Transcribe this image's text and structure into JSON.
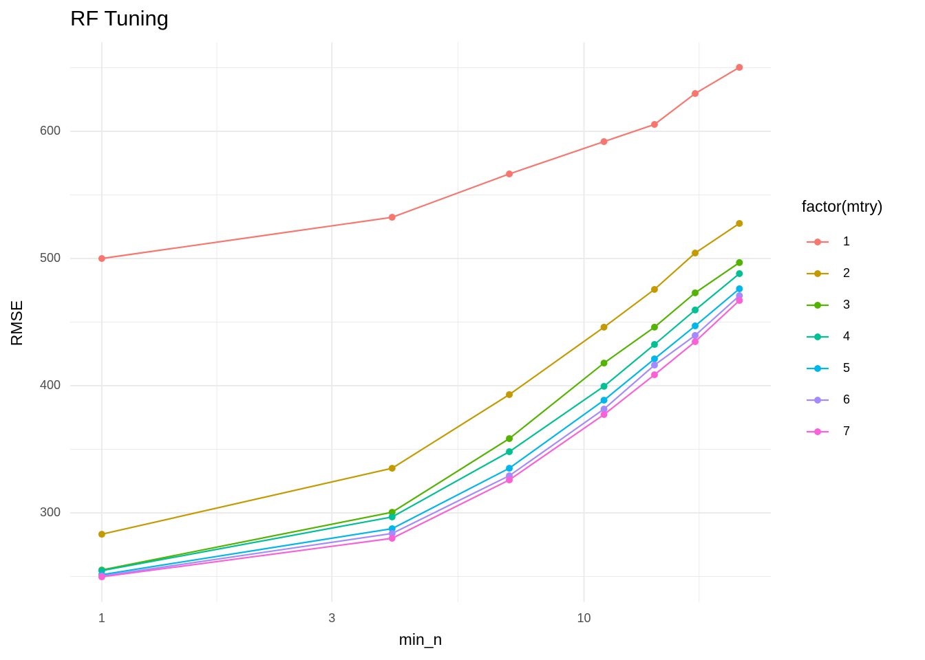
{
  "chart_data": {
    "type": "line",
    "title": "RF Tuning",
    "x_label": "min_n",
    "y_label": "RMSE",
    "legend_title": "factor(mtry)",
    "legend_position": "right",
    "x": [
      1,
      4,
      7,
      11,
      14,
      17,
      21
    ],
    "x_scale": "log",
    "xlim": [
      0.86,
      24.4
    ],
    "xticks": [
      1,
      3,
      10
    ],
    "ylim": [
      230,
      670
    ],
    "yticks": [
      300,
      400,
      500,
      600
    ],
    "grid": true,
    "series": [
      {
        "name": "1",
        "color": "#F8766D",
        "values": [
          500,
          532.4,
          566.5,
          591.9,
          605.4,
          629.7,
          650.3
        ]
      },
      {
        "name": "2",
        "color": "#C49A00",
        "values": [
          283.2,
          335.1,
          393,
          446,
          475.7,
          504.3,
          527.6
        ]
      },
      {
        "name": "3",
        "color": "#53B400",
        "values": [
          255.1,
          300.5,
          358.4,
          417.8,
          446,
          473,
          496.8
        ]
      },
      {
        "name": "4",
        "color": "#00C094",
        "values": [
          254.6,
          296.8,
          348.1,
          399.5,
          432.4,
          459.5,
          488.1
        ]
      },
      {
        "name": "5",
        "color": "#00B6EB",
        "values": [
          251.4,
          287.6,
          335.1,
          388.6,
          421.1,
          447,
          476.2
        ]
      },
      {
        "name": "6",
        "color": "#A58AFF",
        "values": [
          250.3,
          283.8,
          329.2,
          381.6,
          416.2,
          439.5,
          470.8
        ]
      },
      {
        "name": "7",
        "color": "#FB61D7",
        "values": [
          249.7,
          280,
          325.9,
          377.3,
          408.6,
          434.6,
          467
        ]
      }
    ]
  }
}
